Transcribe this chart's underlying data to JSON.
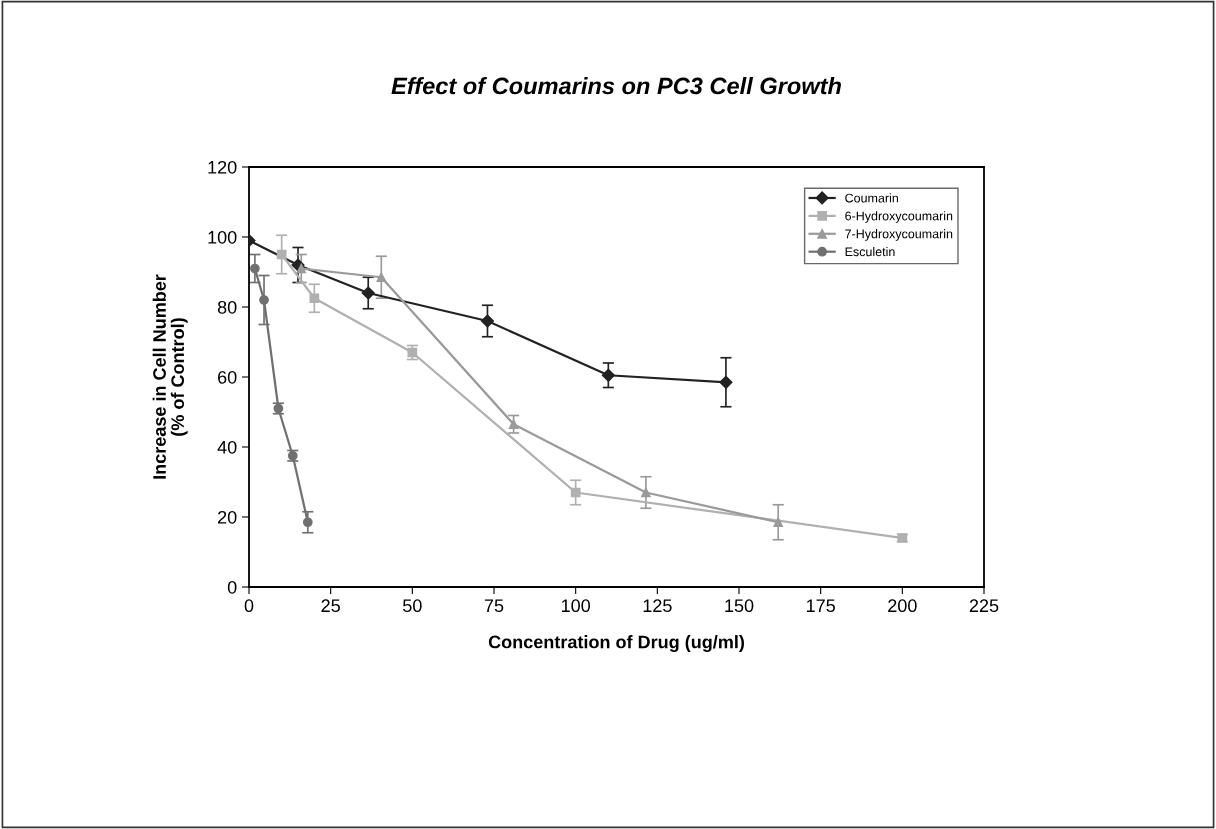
{
  "chart_data": {
    "type": "line",
    "title": "Effect of Coumarins on PC3 Cell Growth",
    "xlabel": "Concentration of Drug (ug/ml)",
    "ylabel": "Increase in Cell Number\n(% of Control)",
    "xlim": [
      0,
      225
    ],
    "xticks": [
      0,
      25,
      50,
      75,
      100,
      125,
      150,
      175,
      200,
      225
    ],
    "ylim": [
      0,
      120
    ],
    "yticks": [
      0,
      20,
      40,
      60,
      80,
      100,
      120
    ],
    "grid": false,
    "legend": "top right",
    "line_style": "solid",
    "series": [
      {
        "name": "Coumarin",
        "color": "#222222",
        "marker": "diamond",
        "x": [
          0,
          15,
          36.5,
          73,
          110,
          146
        ],
        "values": [
          99,
          92,
          84,
          76,
          60.5,
          58.5
        ],
        "errors": [
          null,
          5,
          4.5,
          4.5,
          3.5,
          7
        ]
      },
      {
        "name": "6-Hydroxycoumarin",
        "color": "#b0b0b0",
        "marker": "square",
        "x": [
          10,
          20,
          50,
          100,
          200
        ],
        "values": [
          95,
          82.5,
          67,
          27,
          14
        ],
        "errors": [
          5.5,
          4,
          2,
          3.5,
          1
        ]
      },
      {
        "name": "7-Hydroxycoumarin",
        "color": "#9a9a9a",
        "marker": "triangle",
        "x": [
          16,
          40.5,
          81,
          121.5,
          162
        ],
        "values": [
          91,
          88.5,
          46.5,
          27,
          18.5
        ],
        "errors": [
          4,
          6,
          2.5,
          4.5,
          5
        ]
      },
      {
        "name": "Esculetin",
        "color": "#707070",
        "marker": "circle",
        "x": [
          1.8,
          4.6,
          9,
          13.4,
          18
        ],
        "values": [
          91,
          82,
          51,
          37.5,
          18.5
        ],
        "errors": [
          4,
          7,
          1.5,
          1.5,
          3
        ]
      }
    ]
  }
}
